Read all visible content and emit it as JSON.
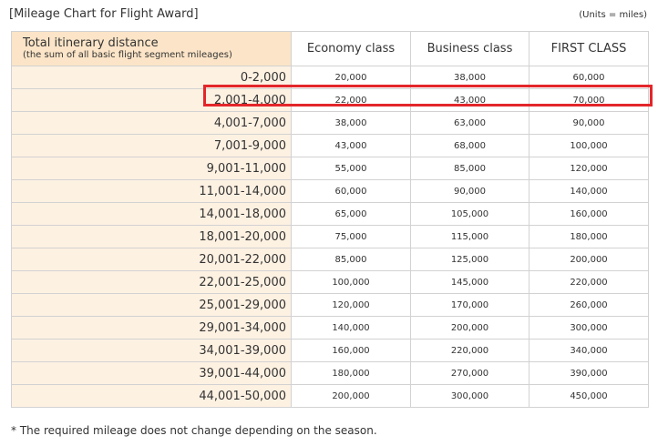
{
  "title": "[Mileage Chart for Flight Award]",
  "units": "(Units = miles)",
  "table": {
    "headers": {
      "distance_main": "Total itinerary distance",
      "distance_sub": "(the sum of all basic flight segment mileages)",
      "economy": "Economy class",
      "business": "Business class",
      "first": "FIRST CLASS"
    },
    "rows": [
      {
        "range": "0-2,000",
        "economy": "20,000",
        "business": "38,000",
        "first": "60,000"
      },
      {
        "range": "2,001-4,000",
        "economy": "22,000",
        "business": "43,000",
        "first": "70,000"
      },
      {
        "range": "4,001-7,000",
        "economy": "38,000",
        "business": "63,000",
        "first": "90,000"
      },
      {
        "range": "7,001-9,000",
        "economy": "43,000",
        "business": "68,000",
        "first": "100,000"
      },
      {
        "range": "9,001-11,000",
        "economy": "55,000",
        "business": "85,000",
        "first": "120,000"
      },
      {
        "range": "11,001-14,000",
        "economy": "60,000",
        "business": "90,000",
        "first": "140,000"
      },
      {
        "range": "14,001-18,000",
        "economy": "65,000",
        "business": "105,000",
        "first": "160,000"
      },
      {
        "range": "18,001-20,000",
        "economy": "75,000",
        "business": "115,000",
        "first": "180,000"
      },
      {
        "range": "20,001-22,000",
        "economy": "85,000",
        "business": "125,000",
        "first": "200,000"
      },
      {
        "range": "22,001-25,000",
        "economy": "100,000",
        "business": "145,000",
        "first": "220,000"
      },
      {
        "range": "25,001-29,000",
        "economy": "120,000",
        "business": "170,000",
        "first": "260,000"
      },
      {
        "range": "29,001-34,000",
        "economy": "140,000",
        "business": "200,000",
        "first": "300,000"
      },
      {
        "range": "34,001-39,000",
        "economy": "160,000",
        "business": "220,000",
        "first": "340,000"
      },
      {
        "range": "39,001-44,000",
        "economy": "180,000",
        "business": "270,000",
        "first": "390,000"
      },
      {
        "range": "44,001-50,000",
        "economy": "200,000",
        "business": "300,000",
        "first": "450,000"
      }
    ],
    "highlighted_row": 1
  },
  "footnote": "* The required mileage does not change depending on the season.",
  "colors": {
    "header_bg": "#fbe4c7",
    "range_bg": "#fdf1e2",
    "border": "#d2d2d2",
    "highlight": "#e3262a",
    "text": "#333333"
  }
}
